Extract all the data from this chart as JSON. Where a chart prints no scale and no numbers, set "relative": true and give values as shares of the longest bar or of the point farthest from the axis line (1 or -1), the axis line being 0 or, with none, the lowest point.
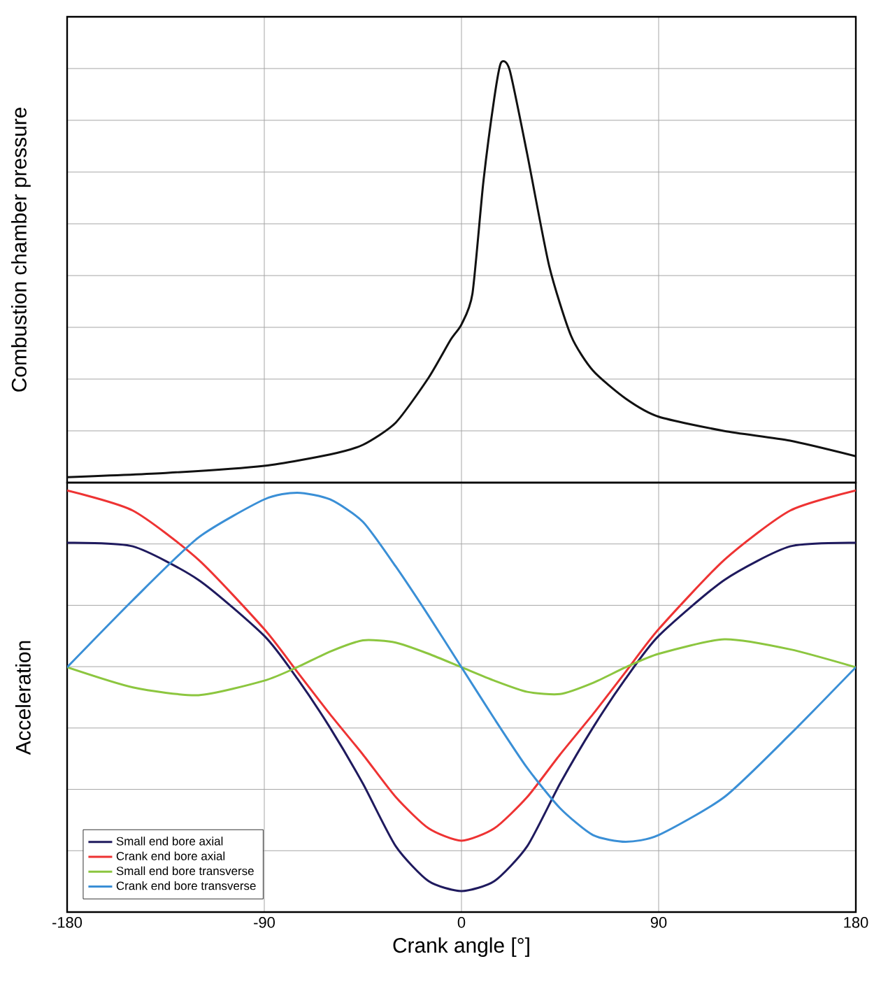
{
  "chart_data": [
    {
      "type": "line",
      "ylabel": "Combustion chamber pressure",
      "relative": true,
      "x": [
        -180,
        -135,
        -90,
        -60,
        -45,
        -30,
        -15,
        -5,
        0,
        5,
        10,
        15,
        18,
        22,
        30,
        40,
        50,
        60,
        75,
        90,
        120,
        150,
        180
      ],
      "values": [
        0.013,
        0.023,
        0.04,
        0.067,
        0.09,
        0.143,
        0.25,
        0.34,
        0.377,
        0.45,
        0.717,
        0.917,
        1.0,
        0.983,
        0.783,
        0.517,
        0.35,
        0.267,
        0.2,
        0.157,
        0.123,
        0.1,
        0.063
      ],
      "color": "#111111",
      "xlim": [
        -180,
        180
      ],
      "xticks": [
        -180,
        -90,
        0,
        90,
        180
      ],
      "tick_labels": false,
      "grid": true
    },
    {
      "type": "line",
      "ylabel": "Acceleration",
      "xlabel": "Crank angle [°]",
      "relative": true,
      "xlim": [
        -180,
        180
      ],
      "xticks": [
        -180,
        -90,
        0,
        90,
        180
      ],
      "tick_labels": "x",
      "grid": true,
      "legend": "bottom left",
      "x": [
        -180,
        -150,
        -120,
        -90,
        -75,
        -60,
        -45,
        -30,
        -15,
        0,
        15,
        30,
        45,
        60,
        75,
        90,
        120,
        150,
        180
      ],
      "series": [
        {
          "name": "Small end bore axial",
          "color": "#1f1a5e",
          "values": [
            0.556,
            0.54,
            0.39,
            0.14,
            -0.05,
            -0.27,
            -0.52,
            -0.8,
            -0.956,
            -1,
            -0.956,
            -0.8,
            -0.52,
            -0.27,
            -0.05,
            0.14,
            0.39,
            0.54,
            0.556
          ]
        },
        {
          "name": "Crank end bore axial",
          "color": "#ee3333",
          "values": [
            0.79,
            0.7,
            0.48,
            0.17,
            -0.02,
            -0.21,
            -0.39,
            -0.58,
            -0.72,
            -0.775,
            -0.72,
            -0.58,
            -0.39,
            -0.21,
            -0.02,
            0.17,
            0.48,
            0.7,
            0.79
          ]
        },
        {
          "name": "Small end bore transverse",
          "color": "#8cc63f",
          "values": [
            0,
            -0.09,
            -0.125,
            -0.06,
            0,
            0.07,
            0.12,
            0.11,
            0.06,
            0,
            -0.06,
            -0.11,
            -0.12,
            -0.07,
            0,
            0.06,
            0.125,
            0.08,
            0
          ]
        },
        {
          "name": "Crank end bore transverse",
          "color": "#3a8fd6",
          "values": [
            0,
            0.3,
            0.58,
            0.75,
            0.78,
            0.75,
            0.65,
            0.45,
            0.23,
            0,
            -0.23,
            -0.45,
            -0.63,
            -0.75,
            -0.78,
            -0.75,
            -0.58,
            -0.3,
            0
          ]
        }
      ]
    }
  ]
}
